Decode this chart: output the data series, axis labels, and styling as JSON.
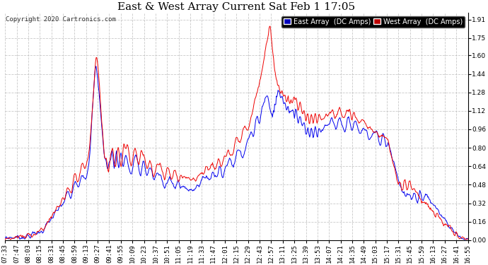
{
  "title": "East & West Array Current Sat Feb 1 17:05",
  "copyright": "Copyright 2020 Cartronics.com",
  "ylabel_right_ticks": [
    0.0,
    0.16,
    0.32,
    0.48,
    0.64,
    0.8,
    0.96,
    1.12,
    1.28,
    1.44,
    1.6,
    1.75,
    1.91
  ],
  "ymin": 0.0,
  "ymax": 1.97,
  "east_color": "#0000ee",
  "west_color": "#ee0000",
  "east_label": "East Array  (DC Amps)",
  "west_label": "West Array  (DC Amps)",
  "background_color": "#ffffff",
  "plot_bg_color": "#ffffff",
  "grid_color": "#bbbbbb",
  "title_fontsize": 11,
  "tick_fontsize": 6.5,
  "legend_east_bg": "#0000bb",
  "legend_west_bg": "#bb0000",
  "xtick_labels": [
    "07:33",
    "07:47",
    "08:03",
    "08:15",
    "08:31",
    "08:45",
    "08:59",
    "09:13",
    "09:27",
    "09:41",
    "09:55",
    "10:09",
    "10:23",
    "10:37",
    "10:51",
    "11:05",
    "11:19",
    "11:33",
    "11:47",
    "12:01",
    "12:15",
    "12:29",
    "12:43",
    "12:57",
    "13:11",
    "13:25",
    "13:39",
    "13:53",
    "14:07",
    "14:21",
    "14:35",
    "14:49",
    "15:03",
    "15:17",
    "15:31",
    "15:45",
    "15:59",
    "16:13",
    "16:27",
    "16:41",
    "16:55"
  ]
}
